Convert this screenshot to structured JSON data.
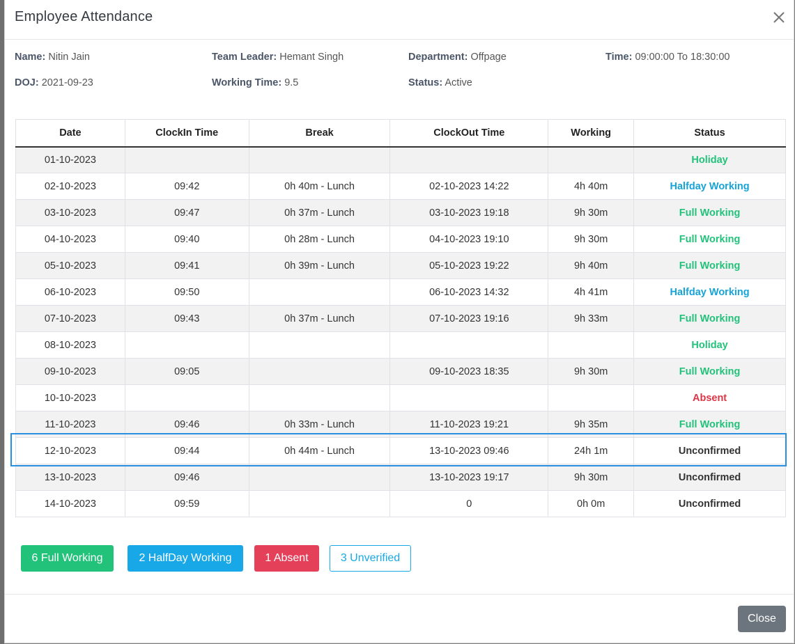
{
  "modal": {
    "title": "Employee Attendance",
    "close_icon": "close-icon"
  },
  "employee": {
    "name_label": "Name:",
    "name": "Nitin Jain",
    "team_leader_label": "Team Leader:",
    "team_leader": "Hemant Singh",
    "department_label": "Department:",
    "department": "Offpage",
    "time_label": "Time:",
    "time": "09:00:00 To 18:30:00",
    "doj_label": "DOJ:",
    "doj": "2021-09-23",
    "working_time_label": "Working Time:",
    "working_time": "9.5",
    "status_label": "Status:",
    "status": "Active"
  },
  "table": {
    "headers": [
      "Date",
      "ClockIn Time",
      "Break",
      "ClockOut Time",
      "Working",
      "Status"
    ],
    "rows": [
      {
        "date": "01-10-2023",
        "clockin": "",
        "break": "",
        "clockout": "",
        "working": "",
        "status": "Holiday",
        "status_type": "holiday"
      },
      {
        "date": "02-10-2023",
        "clockin": "09:42",
        "break": "0h 40m - Lunch",
        "clockout": "02-10-2023 14:22",
        "working": "4h 40m",
        "status": "Halfday Working",
        "status_type": "half"
      },
      {
        "date": "03-10-2023",
        "clockin": "09:47",
        "break": "0h 37m - Lunch",
        "clockout": "03-10-2023 19:18",
        "working": "9h 30m",
        "status": "Full Working",
        "status_type": "full"
      },
      {
        "date": "04-10-2023",
        "clockin": "09:40",
        "break": "0h 28m - Lunch",
        "clockout": "04-10-2023 19:10",
        "working": "9h 30m",
        "status": "Full Working",
        "status_type": "full"
      },
      {
        "date": "05-10-2023",
        "clockin": "09:41",
        "break": "0h 39m - Lunch",
        "clockout": "05-10-2023 19:22",
        "working": "9h 40m",
        "status": "Full Working",
        "status_type": "full"
      },
      {
        "date": "06-10-2023",
        "clockin": "09:50",
        "break": "",
        "clockout": "06-10-2023 14:32",
        "working": "4h 41m",
        "status": "Halfday Working",
        "status_type": "half"
      },
      {
        "date": "07-10-2023",
        "clockin": "09:43",
        "break": "0h 37m - Lunch",
        "clockout": "07-10-2023 19:16",
        "working": "9h 33m",
        "status": "Full Working",
        "status_type": "full"
      },
      {
        "date": "08-10-2023",
        "clockin": "",
        "break": "",
        "clockout": "",
        "working": "",
        "status": "Holiday",
        "status_type": "holiday"
      },
      {
        "date": "09-10-2023",
        "clockin": "09:05",
        "break": "",
        "clockout": "09-10-2023 18:35",
        "working": "9h 30m",
        "status": "Full Working",
        "status_type": "full"
      },
      {
        "date": "10-10-2023",
        "clockin": "",
        "break": "",
        "clockout": "",
        "working": "",
        "status": "Absent",
        "status_type": "absent"
      },
      {
        "date": "11-10-2023",
        "clockin": "09:46",
        "break": "0h 33m - Lunch",
        "clockout": "11-10-2023 19:21",
        "working": "9h 35m",
        "status": "Full Working",
        "status_type": "full"
      },
      {
        "date": "12-10-2023",
        "clockin": "09:44",
        "break": "0h 44m - Lunch",
        "clockout": "13-10-2023 09:46",
        "working": "24h 1m",
        "status": "Unconfirmed",
        "status_type": "unconf"
      },
      {
        "date": "13-10-2023",
        "clockin": "09:46",
        "break": "",
        "clockout": "13-10-2023 19:17",
        "working": "9h 30m",
        "status": "Unconfirmed",
        "status_type": "unconf"
      },
      {
        "date": "14-10-2023",
        "clockin": "09:59",
        "break": "",
        "clockout": "0",
        "working": "0h 0m",
        "status": "Unconfirmed",
        "status_type": "unconf"
      }
    ]
  },
  "summary": {
    "full_working": "6 Full Working",
    "halfday_working": "2 HalfDay Working",
    "absent": "1 Absent",
    "unverified": "3 Unverified"
  },
  "footer": {
    "close_label": "Close"
  },
  "colors": {
    "full": "#22c27a",
    "half": "#18a8e8",
    "absent": "#e4405a",
    "highlight": "#2b8fe0",
    "close_button": "#6c757d"
  }
}
